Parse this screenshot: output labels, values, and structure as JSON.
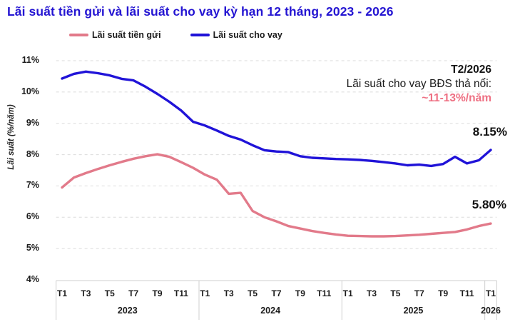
{
  "title": "Lãi suất tiền gửi và lãi suất cho vay kỳ hạn 12 tháng, 2023 - 2026",
  "colors": {
    "title_blue": "#2415d2",
    "lending_line": "#2013d8",
    "deposit_line": "#e27a8a",
    "annotation_pink": "#ee7083",
    "grid": "#dbdbdb",
    "axis_border": "#cfcfcf",
    "axis_text": "#1b1b1b"
  },
  "legend": [
    {
      "label": "Lãi suất tiền gửi",
      "series": "deposit"
    },
    {
      "label": "Lãi suất cho vay",
      "series": "lending"
    }
  ],
  "y_axis": {
    "title": "Lãi suất (%/năm)",
    "ticks": [
      {
        "label": "11%",
        "value": 11
      },
      {
        "label": "10%",
        "value": 10
      },
      {
        "label": "9%",
        "value": 9
      },
      {
        "label": "8%",
        "value": 8
      },
      {
        "label": "7%",
        "value": 7
      },
      {
        "label": "6%",
        "value": 6
      },
      {
        "label": "5%",
        "value": 5
      },
      {
        "label": "4%",
        "value": 4
      }
    ]
  },
  "x_axis": {
    "ticks": [
      {
        "m": 0,
        "label": "T1"
      },
      {
        "m": 2,
        "label": "T3"
      },
      {
        "m": 4,
        "label": "T5"
      },
      {
        "m": 6,
        "label": "T7"
      },
      {
        "m": 8,
        "label": "T9"
      },
      {
        "m": 10,
        "label": "T11"
      },
      {
        "m": 12,
        "label": "T1"
      },
      {
        "m": 14,
        "label": "T3"
      },
      {
        "m": 16,
        "label": "T5"
      },
      {
        "m": 18,
        "label": "T7"
      },
      {
        "m": 20,
        "label": "T9"
      },
      {
        "m": 22,
        "label": "T11"
      },
      {
        "m": 24,
        "label": "T1"
      },
      {
        "m": 26,
        "label": "T3"
      },
      {
        "m": 28,
        "label": "T5"
      },
      {
        "m": 30,
        "label": "T7"
      },
      {
        "m": 32,
        "label": "T9"
      },
      {
        "m": 34,
        "label": "T11"
      },
      {
        "m": 36,
        "label": "T1"
      }
    ],
    "years": [
      {
        "label": "2023",
        "from_m": 0,
        "to_m": 11
      },
      {
        "label": "2024",
        "from_m": 12,
        "to_m": 23
      },
      {
        "label": "2025",
        "from_m": 24,
        "to_m": 35
      },
      {
        "label": "2026",
        "from_m": 36,
        "to_m": 36
      }
    ]
  },
  "annotation": {
    "line1": "T2/2026",
    "line2": "Lãi suất cho vay BĐS thả nổi:",
    "line3": "~11-13%/năm"
  },
  "end_labels": {
    "lending": "8.15%",
    "deposit": "5.80%"
  },
  "chart_data": {
    "type": "line",
    "title": "Lãi suất tiền gửi và lãi suất cho vay kỳ hạn 12 tháng, 2023 - 2026",
    "ylabel": "Lãi suất (%/năm)",
    "ylim": [
      4,
      11
    ],
    "grid": true,
    "legend_position": "top",
    "x_labels": [
      "2023-T1",
      "2023-T2",
      "2023-T3",
      "2023-T4",
      "2023-T5",
      "2023-T6",
      "2023-T7",
      "2023-T8",
      "2023-T9",
      "2023-T10",
      "2023-T11",
      "2023-T12",
      "2024-T1",
      "2024-T2",
      "2024-T3",
      "2024-T4",
      "2024-T5",
      "2024-T6",
      "2024-T7",
      "2024-T8",
      "2024-T9",
      "2024-T10",
      "2024-T11",
      "2024-T12",
      "2025-T1",
      "2025-T2",
      "2025-T3",
      "2025-T4",
      "2025-T5",
      "2025-T6",
      "2025-T7",
      "2025-T8",
      "2025-T9",
      "2025-T10",
      "2025-T11",
      "2025-T12",
      "2026-T1"
    ],
    "series": [
      {
        "name": "Lãi suất tiền gửi",
        "color": "#e27a8a",
        "final_label": "5.80%",
        "values": [
          6.95,
          7.27,
          7.41,
          7.54,
          7.66,
          7.77,
          7.87,
          7.95,
          8.01,
          7.93,
          7.76,
          7.58,
          7.36,
          7.2,
          6.75,
          6.78,
          6.2,
          6.0,
          5.87,
          5.72,
          5.64,
          5.56,
          5.5,
          5.45,
          5.41,
          5.4,
          5.39,
          5.39,
          5.4,
          5.42,
          5.44,
          5.47,
          5.5,
          5.53,
          5.61,
          5.72,
          5.8
        ]
      },
      {
        "name": "Lãi suất cho vay",
        "color": "#2013d8",
        "final_label": "8.15%",
        "values": [
          10.43,
          10.58,
          10.65,
          10.6,
          10.53,
          10.42,
          10.37,
          10.17,
          9.94,
          9.69,
          9.41,
          9.05,
          8.93,
          8.77,
          8.6,
          8.48,
          8.3,
          8.14,
          8.1,
          8.08,
          7.95,
          7.9,
          7.88,
          7.86,
          7.85,
          7.83,
          7.8,
          7.76,
          7.72,
          7.66,
          7.68,
          7.64,
          7.7,
          7.93,
          7.72,
          7.82,
          8.15
        ]
      }
    ],
    "annotation_text": [
      "T2/2026",
      "Lãi suất cho vay BĐS thả nổi:",
      "~11-13%/năm"
    ]
  }
}
